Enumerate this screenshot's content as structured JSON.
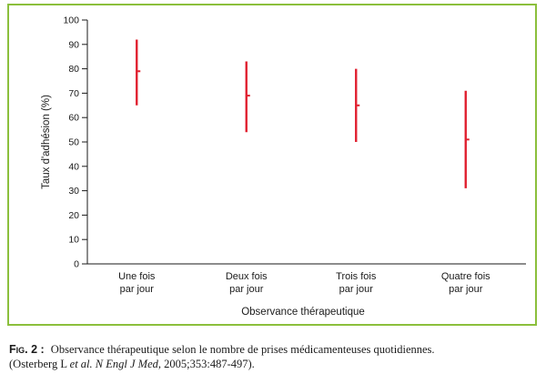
{
  "chart_data": {
    "type": "range",
    "title": "",
    "xlabel": "Observance thérapeutique",
    "ylabel": "Taux d'adhésion (%)",
    "ylim": [
      0,
      100
    ],
    "yticks": [
      "0",
      "10",
      "20",
      "30",
      "40",
      "50",
      "60",
      "70",
      "80",
      "90",
      "100"
    ],
    "categories": [
      {
        "line1": "Une fois",
        "line2": "par jour"
      },
      {
        "line1": "Deux fois",
        "line2": "par jour"
      },
      {
        "line1": "Trois fois",
        "line2": "par jour"
      },
      {
        "line1": "Quatre fois",
        "line2": "par jour"
      }
    ],
    "values": [
      {
        "low": 65,
        "high": 92,
        "mean": 79
      },
      {
        "low": 54,
        "high": 83,
        "mean": 69
      },
      {
        "low": 50,
        "high": 80,
        "mean": 65
      },
      {
        "low": 31,
        "high": 71,
        "mean": 51
      }
    ],
    "series_color": "#e0202f",
    "frame_color": "#8bbf3c",
    "grid": false
  },
  "caption": {
    "label": "Fig. 2 :",
    "text": "Observance thérapeutique selon le nombre de prises médicamenteuses quotidiennes.",
    "ref_prefix": "(Osterberg L ",
    "ref_etal": "et al.",
    "ref_journal": " N Engl J Med",
    "ref_suffix": ", 2005;353:487-497)."
  }
}
